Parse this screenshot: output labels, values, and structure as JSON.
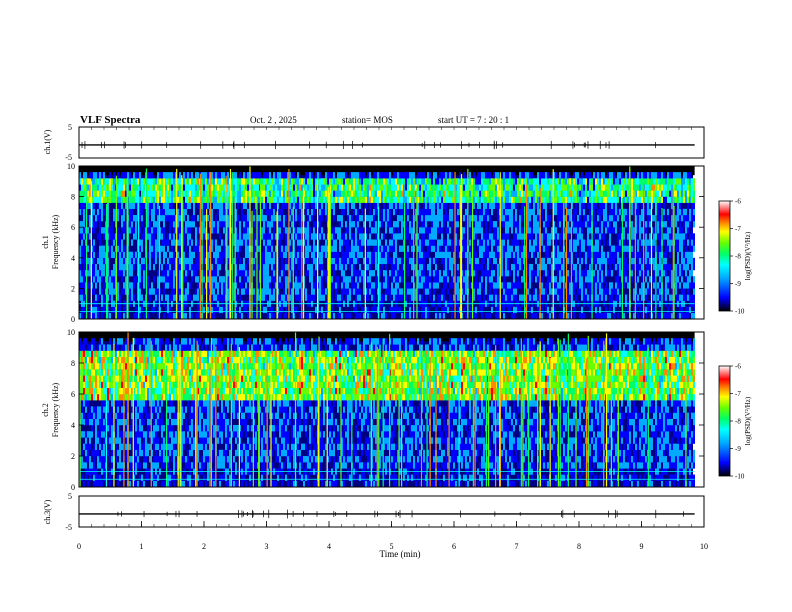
{
  "header": {
    "title": "VLF Spectra",
    "date": "Oct. 2  , 2025",
    "station": "station= MOS",
    "start": "start  UT  =   7 : 20 : 1"
  },
  "colors": {
    "background": "#000080",
    "colormap": [
      "#000000",
      "#0000ff",
      "#00aaff",
      "#00ffff",
      "#00ff66",
      "#66ff00",
      "#ffff00",
      "#ff8800",
      "#ff0000",
      "#ffffff"
    ]
  },
  "chart_data": [
    {
      "type": "line",
      "id": "ch1-waveform",
      "ylabel": "ch.1(V)",
      "ylim": [
        -5,
        5
      ],
      "yticks": [
        "5",
        "-5"
      ],
      "xlim": [
        0,
        10
      ],
      "description_value": "near-constant trace around -0.8 V"
    },
    {
      "type": "heatmap",
      "id": "ch1-spectrogram",
      "ylabel": "ch.1 Frequency (kHz)",
      "ylim": [
        0,
        10
      ],
      "yticks": [
        "0",
        "2",
        "4",
        "6",
        "8",
        "10"
      ],
      "xlim": [
        0,
        9.85
      ],
      "colorbar_label": "log(PSD)(V²/Hz)",
      "colorbar_range": [
        -10,
        -6
      ],
      "colorbar_ticks": [
        "-6",
        "-7",
        "-8",
        "-9",
        "-10"
      ],
      "dense_band_khz": [
        7.5,
        9.2
      ],
      "dense_band_level": -8.3
    },
    {
      "type": "heatmap",
      "id": "ch2-spectrogram",
      "ylabel": "ch.2 Frequency (kHz)",
      "ylim": [
        0,
        10
      ],
      "yticks": [
        "0",
        "2",
        "4",
        "6",
        "8",
        "10"
      ],
      "xlim": [
        0,
        9.85
      ],
      "colorbar_label": "log(PSD)(V²/Hz)",
      "colorbar_range": [
        -10,
        -6
      ],
      "colorbar_ticks": [
        "-6",
        "-7",
        "-8",
        "-9",
        "-10"
      ],
      "dense_band_khz": [
        5.5,
        8.5
      ],
      "dense_band_level": -7.8
    },
    {
      "type": "line",
      "id": "ch3-waveform",
      "ylabel": "ch.3(V)",
      "ylim": [
        -5,
        5
      ],
      "yticks": [
        "5",
        "-5"
      ],
      "xlim": [
        0,
        10
      ],
      "description_value": "near-constant trace around -0.8 V"
    }
  ],
  "xaxis": {
    "label": "Time  (min)",
    "range": [
      0,
      10
    ],
    "ticks": [
      "0",
      "1",
      "2",
      "3",
      "4",
      "5",
      "6",
      "7",
      "8",
      "9",
      "10"
    ]
  }
}
